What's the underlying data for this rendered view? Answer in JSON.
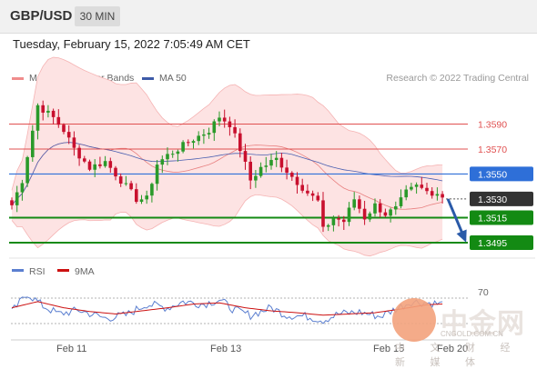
{
  "header": {
    "symbol": "GBP/USD",
    "timeframe": "30 MIN"
  },
  "datetime": "Tuesday, February 15, 2022 7:05:49 AM CET",
  "legend": {
    "ma20": "MA 20 + Bollinger Bands",
    "ma50": "MA 50"
  },
  "credit": "Research © 2022 Trading Central",
  "colors": {
    "up": "#2a9a2a",
    "down": "#c8102e",
    "bands": "#fde3e3",
    "ma20": "#e88080",
    "ma50": "#4a5fb0",
    "support": "#138a13",
    "resistance": "#e05050",
    "pivot": "#2e6fd8",
    "arrow": "#2a5aa8"
  },
  "chart_data": [
    {
      "type": "candlestick",
      "series": [
        {
          "name": "MA 20 + Bollinger Bands"
        },
        {
          "name": "MA 50"
        }
      ],
      "x_tick_labels": [
        "Feb 11",
        "Feb 13",
        "Feb 15",
        "Feb 20"
      ],
      "ylim": [
        1.3487,
        1.3618
      ],
      "levels": [
        {
          "value": 1.359,
          "label": "1.3590",
          "kind": "resistance"
        },
        {
          "value": 1.357,
          "label": "1.3570",
          "kind": "resistance"
        },
        {
          "value": 1.355,
          "label": "1.3550",
          "kind": "pivot"
        },
        {
          "value": 1.353,
          "label": "1.3530",
          "kind": "last_price"
        },
        {
          "value": 1.3515,
          "label": "1.3515",
          "kind": "support"
        },
        {
          "value": 1.3495,
          "label": "1.3495",
          "kind": "support"
        }
      ],
      "arrow": {
        "direction": "down",
        "from": 1.353,
        "to": 1.3495
      },
      "close_path": [
        [
          0,
          1.3525
        ],
        [
          2,
          1.3545
        ],
        [
          5,
          1.3605
        ],
        [
          8,
          1.3595
        ],
        [
          10,
          1.3585
        ],
        [
          12,
          1.357
        ],
        [
          15,
          1.3555
        ],
        [
          18,
          1.356
        ],
        [
          22,
          1.354
        ],
        [
          24,
          1.353
        ],
        [
          26,
          1.353
        ],
        [
          28,
          1.3558
        ],
        [
          30,
          1.3565
        ],
        [
          32,
          1.357
        ],
        [
          35,
          1.3578
        ],
        [
          38,
          1.3585
        ],
        [
          40,
          1.3596
        ],
        [
          42,
          1.359
        ],
        [
          44,
          1.357
        ],
        [
          46,
          1.3545
        ],
        [
          48,
          1.3555
        ],
        [
          51,
          1.3562
        ],
        [
          54,
          1.3548
        ],
        [
          57,
          1.3535
        ],
        [
          59,
          1.3528
        ],
        [
          60,
          1.3505
        ],
        [
          62,
          1.3515
        ],
        [
          64,
          1.3512
        ],
        [
          66,
          1.353
        ],
        [
          68,
          1.3515
        ],
        [
          70,
          1.3525
        ],
        [
          72,
          1.3518
        ],
        [
          74,
          1.3522
        ],
        [
          76,
          1.3535
        ],
        [
          78,
          1.354
        ],
        [
          80,
          1.3536
        ],
        [
          82,
          1.3535
        ],
        [
          83,
          1.3532
        ]
      ]
    },
    {
      "type": "line",
      "series": [
        {
          "name": "RSI"
        },
        {
          "name": "9MA"
        }
      ],
      "ylim": [
        0,
        100
      ],
      "y_tick_labels": [
        "70"
      ],
      "rsi_path": [
        [
          0,
          45
        ],
        [
          3,
          75
        ],
        [
          6,
          55
        ],
        [
          9,
          42
        ],
        [
          13,
          48
        ],
        [
          18,
          35
        ],
        [
          22,
          40
        ],
        [
          26,
          58
        ],
        [
          30,
          52
        ],
        [
          33,
          62
        ],
        [
          37,
          58
        ],
        [
          40,
          65
        ],
        [
          43,
          48
        ],
        [
          46,
          40
        ],
        [
          50,
          52
        ],
        [
          53,
          40
        ],
        [
          57,
          38
        ],
        [
          60,
          32
        ],
        [
          63,
          42
        ],
        [
          67,
          45
        ],
        [
          71,
          38
        ],
        [
          74,
          50
        ],
        [
          77,
          62
        ],
        [
          80,
          60
        ],
        [
          83,
          58
        ]
      ],
      "ma9_path": [
        [
          0,
          52
        ],
        [
          5,
          62
        ],
        [
          10,
          52
        ],
        [
          15,
          46
        ],
        [
          20,
          42
        ],
        [
          25,
          47
        ],
        [
          30,
          52
        ],
        [
          35,
          58
        ],
        [
          40,
          60
        ],
        [
          45,
          52
        ],
        [
          50,
          47
        ],
        [
          55,
          44
        ],
        [
          60,
          40
        ],
        [
          65,
          42
        ],
        [
          70,
          44
        ],
        [
          75,
          50
        ],
        [
          80,
          57
        ],
        [
          83,
          58
        ]
      ]
    }
  ],
  "watermark": {
    "brand": "中金网",
    "site": "CNGOLD.COM.CN",
    "tagline": "中 文 财 经 新 媒 体"
  }
}
